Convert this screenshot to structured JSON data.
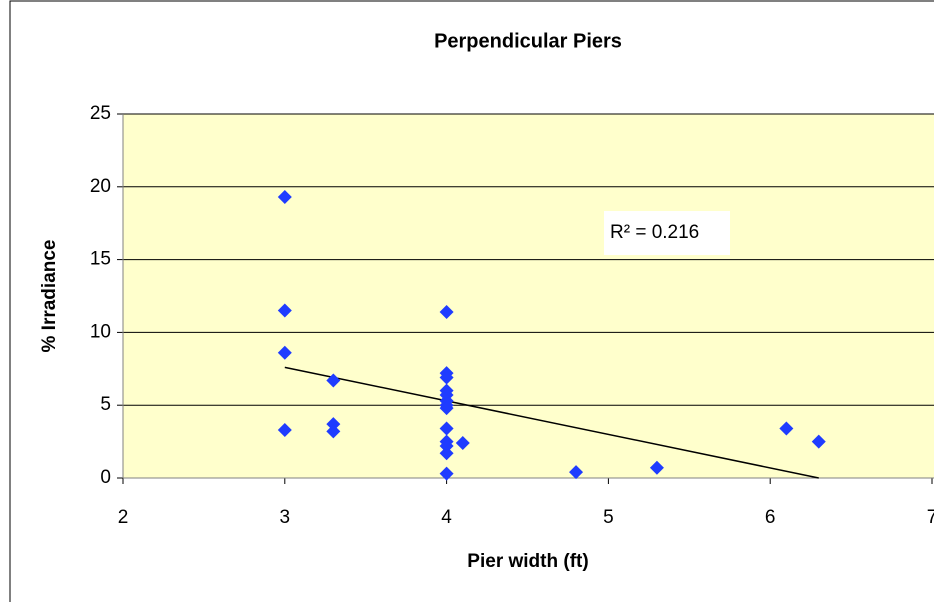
{
  "chart_data": {
    "type": "scatter",
    "title": "Perpendicular Piers",
    "xlabel": "Pier width (ft)",
    "ylabel": "% Irradiance",
    "series": [
      {
        "color": "#1f3cff",
        "x": [
          3,
          3,
          3,
          3,
          3.3,
          3.3,
          3.3,
          4,
          4,
          4,
          4,
          4,
          4,
          4,
          4,
          4,
          4,
          4,
          4,
          4,
          4.1,
          4.8,
          5.3,
          6.1,
          6.3
        ],
        "values": [
          19.3,
          11.5,
          8.6,
          3.3,
          6.7,
          3.7,
          3.2,
          11.4,
          7.2,
          6.9,
          6.0,
          5.7,
          5.3,
          5.0,
          4.8,
          3.4,
          2.5,
          2.2,
          1.7,
          0.3,
          2.4,
          0.4,
          0.7,
          3.4,
          2.5
        ]
      }
    ],
    "trendline": {
      "x": [
        3,
        6.3
      ],
      "y": [
        7.6,
        0
      ],
      "color": "#000000"
    },
    "annotation": "R² = 0.216",
    "xlim": [
      2,
      7
    ],
    "xticks": [
      2,
      3,
      4,
      5,
      6,
      7
    ],
    "ylim": [
      0,
      25
    ],
    "yticks": [
      0,
      5,
      10,
      15,
      20,
      25
    ],
    "grid": true
  }
}
